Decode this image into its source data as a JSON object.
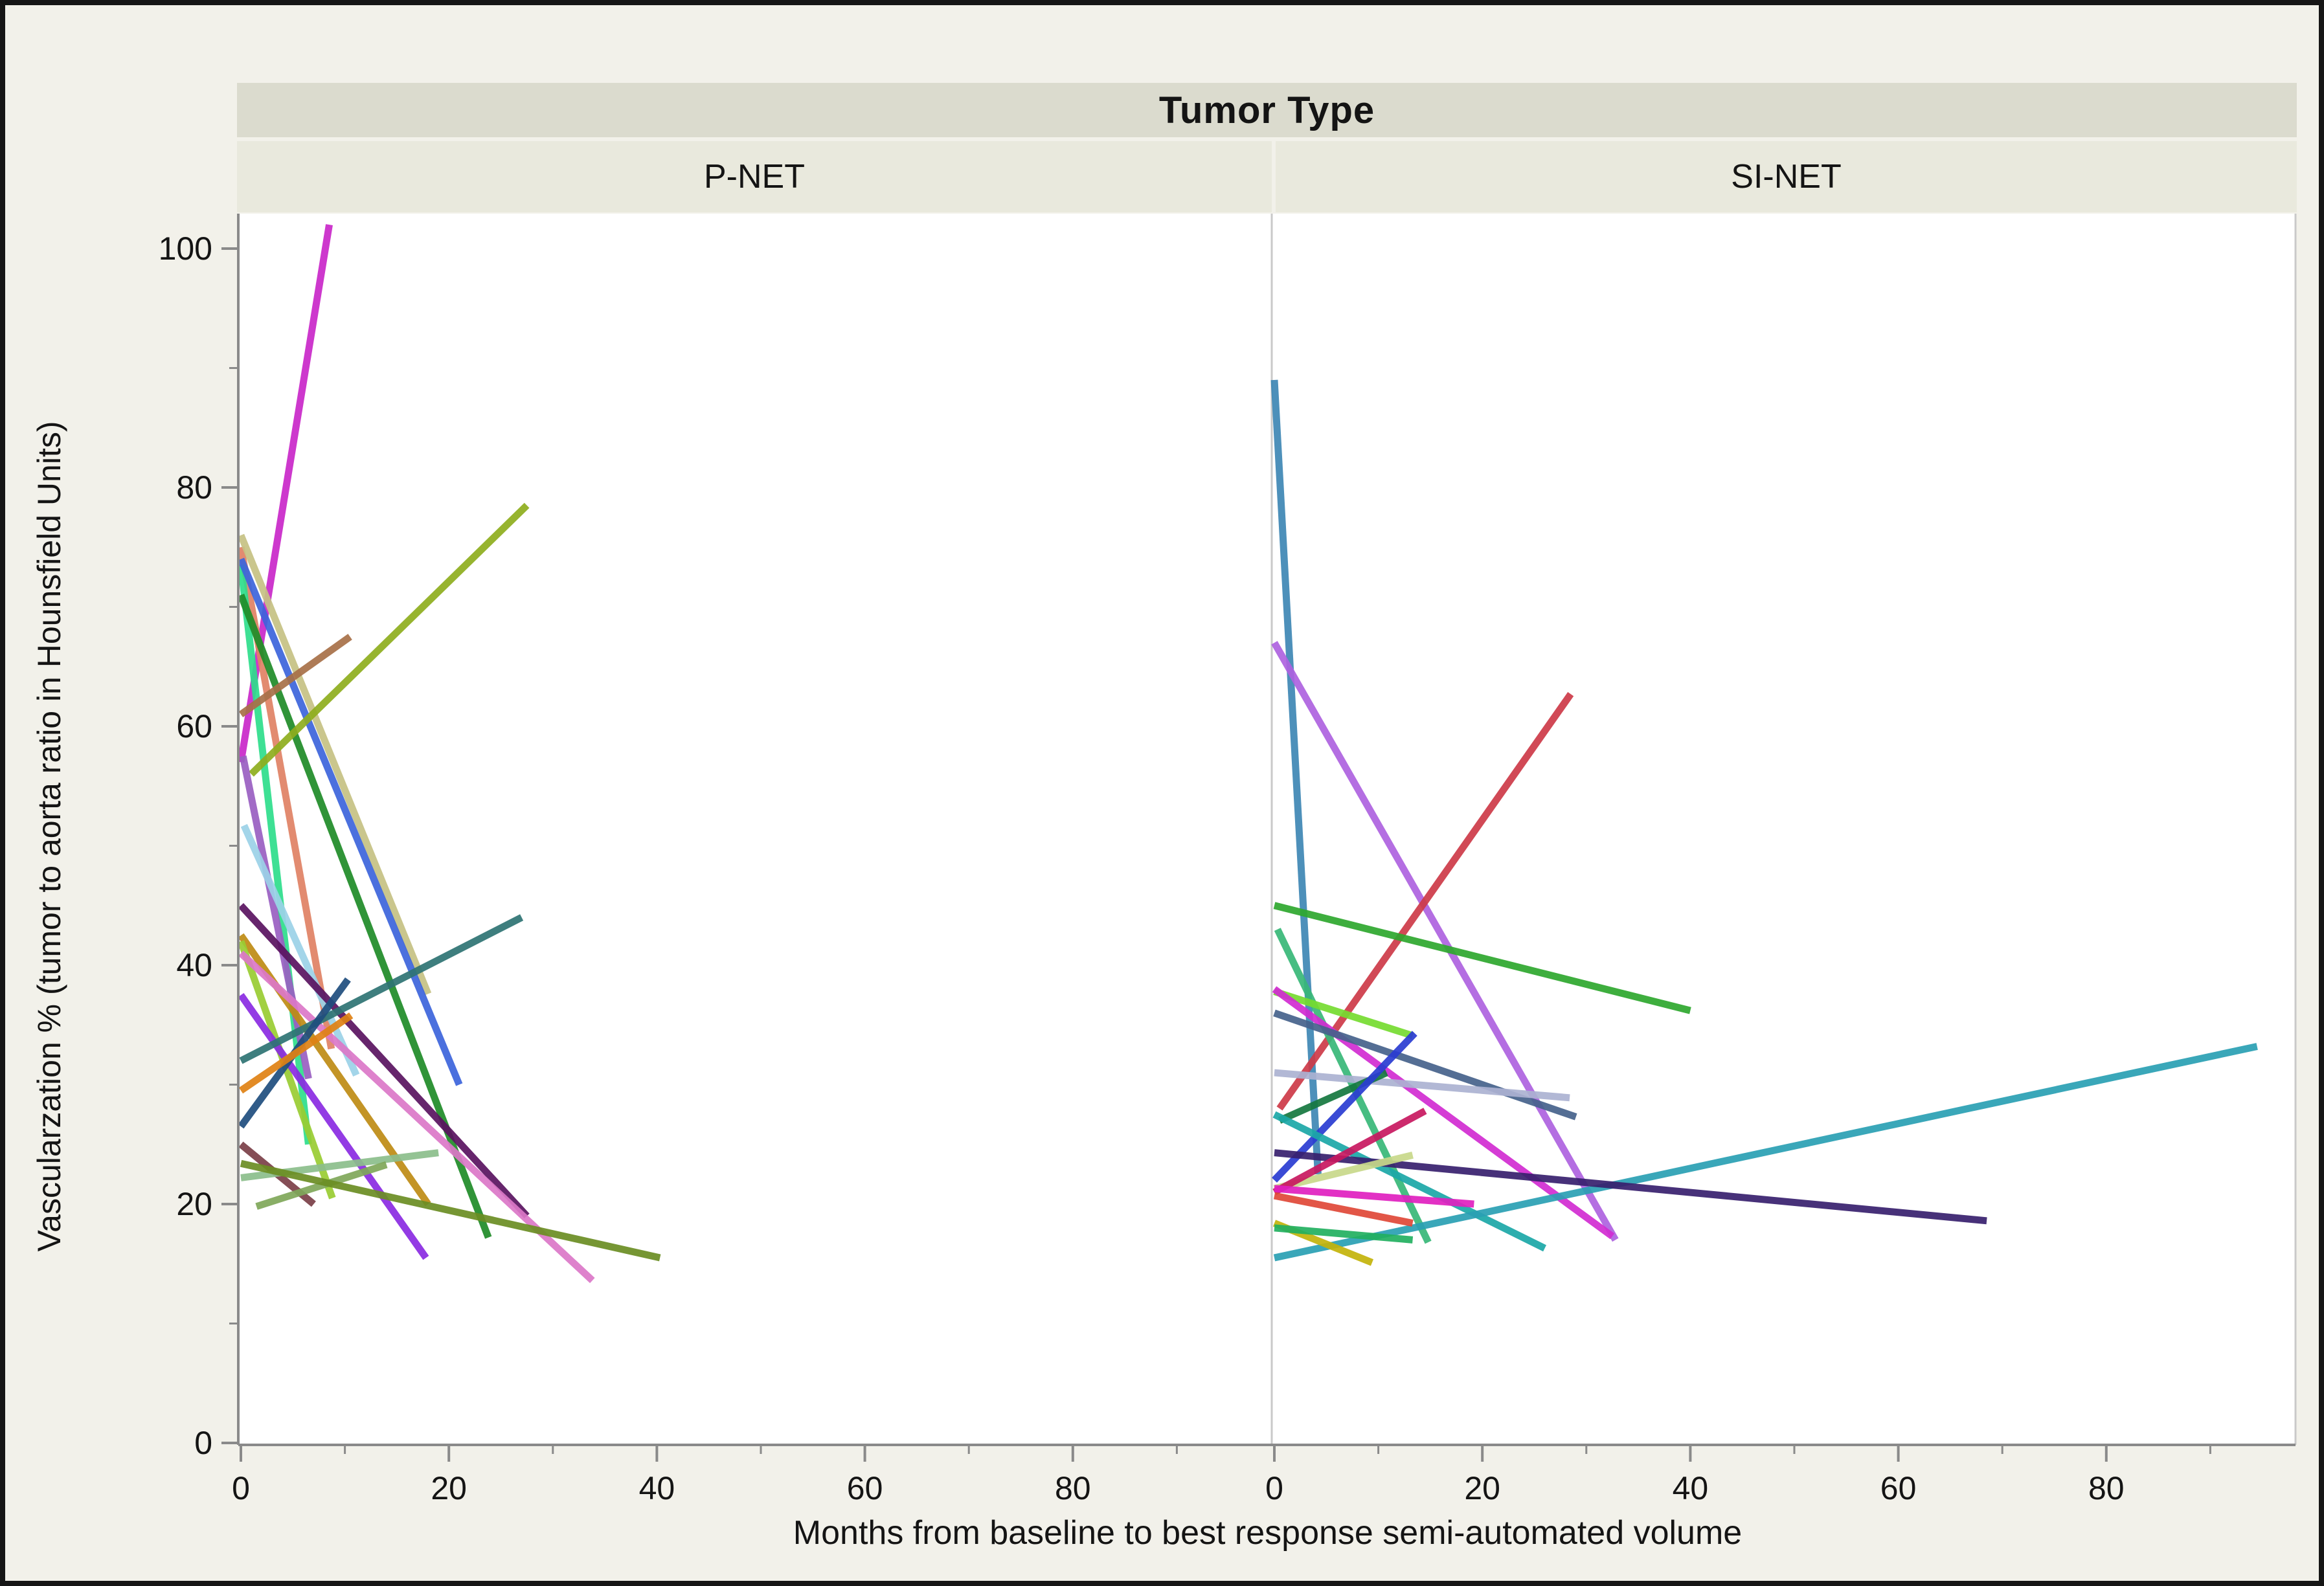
{
  "window": {
    "border_color": "#161616",
    "background_color": "#F2F1EA",
    "plot_background": "#FFFFFF",
    "title_band_color": "#DBDBCE",
    "panel_band_color": "#E9E9DD",
    "axis_color": "#8A8A8A",
    "divider_color": "#C9C9C9",
    "text_color": "#141414"
  },
  "chart_data": {
    "type": "line",
    "title": "Tumor Type",
    "xlabel": "Months from baseline to best response semi-automated volume",
    "ylabel": "Vascularzation % (tumor to aorta ratio in Hounsfield Units)",
    "xlim": [
      0,
      98
    ],
    "ylim": [
      0,
      103
    ],
    "x_major_ticks": [
      0,
      20,
      40,
      60,
      80
    ],
    "x_minor_ticks": [
      10,
      30,
      50,
      70,
      90
    ],
    "y_major_ticks": [
      0,
      20,
      40,
      60,
      80,
      100
    ],
    "y_minor_ticks": [
      10,
      30,
      50,
      70,
      90
    ],
    "grid": false,
    "legend": "none",
    "description": "Spaghetti plot: one straight segment per patient from baseline (month 0) vascularization % to vascularization % at best-response time, faceted by tumor type.",
    "panels": [
      {
        "label": "P-NET",
        "series": [
          {
            "color": "#C928C9",
            "x": [
              0,
              8.5
            ],
            "y": [
              57,
              102
            ]
          },
          {
            "color": "#E08264",
            "x": [
              0,
              8.7
            ],
            "y": [
              75,
              33
            ]
          },
          {
            "color": "#2EDE8C",
            "x": [
              0,
              6.5
            ],
            "y": [
              73.5,
              25
            ]
          },
          {
            "color": "#C6C284",
            "x": [
              0,
              18
            ],
            "y": [
              76,
              37.6
            ]
          },
          {
            "color": "#3C64DC",
            "x": [
              0,
              21
            ],
            "y": [
              74,
              30
            ]
          },
          {
            "color": "#1F8C28",
            "x": [
              0,
              23.8
            ],
            "y": [
              71,
              17.2
            ]
          },
          {
            "color": "#A87048",
            "x": [
              0,
              10.5
            ],
            "y": [
              61,
              67.5
            ]
          },
          {
            "color": "#8FAE1E",
            "x": [
              1,
              27.5
            ],
            "y": [
              56,
              78.5
            ]
          },
          {
            "color": "#9A5FC2",
            "x": [
              0.2,
              6.5
            ],
            "y": [
              57.5,
              30.5
            ]
          },
          {
            "color": "#9CD2E8",
            "x": [
              0.3,
              11.1
            ],
            "y": [
              51.7,
              30.8
            ]
          },
          {
            "color": "#5A1360",
            "x": [
              0,
              27.5
            ],
            "y": [
              45,
              19
            ]
          },
          {
            "color": "#BE8C14",
            "x": [
              0,
              18
            ],
            "y": [
              42.5,
              20
            ]
          },
          {
            "color": "#9ACD32",
            "x": [
              0,
              8.8
            ],
            "y": [
              42,
              20.5
            ]
          },
          {
            "color": "#DC78C8",
            "x": [
              0,
              33.8
            ],
            "y": [
              41,
              13.6
            ]
          },
          {
            "color": "#8A2BE2",
            "x": [
              0,
              17.8
            ],
            "y": [
              37.5,
              15.5
            ]
          },
          {
            "color": "#2E7474",
            "x": [
              0,
              27
            ],
            "y": [
              32,
              44
            ]
          },
          {
            "color": "#1F4E7E",
            "x": [
              0,
              10.3
            ],
            "y": [
              26.5,
              38.8
            ]
          },
          {
            "color": "#E08214",
            "x": [
              0,
              10.6
            ],
            "y": [
              29.5,
              35.8
            ]
          },
          {
            "color": "#7B4048",
            "x": [
              0,
              7
            ],
            "y": [
              25,
              20
            ]
          },
          {
            "color": "#8CBE8C",
            "x": [
              0,
              19
            ],
            "y": [
              22.2,
              24.3
            ]
          },
          {
            "color": "#7FA85A",
            "x": [
              1.5,
              14
            ],
            "y": [
              19.8,
              23.3
            ]
          },
          {
            "color": "#6B8E23",
            "x": [
              0,
              40.3
            ],
            "y": [
              23.4,
              15.5
            ]
          }
        ]
      },
      {
        "label": "SI-NET",
        "series": [
          {
            "color": "#3E87B5",
            "x": [
              0,
              4.2
            ],
            "y": [
              89,
              22.5
            ]
          },
          {
            "color": "#AE62E0",
            "x": [
              0,
              32.8
            ],
            "y": [
              67,
              17
            ]
          },
          {
            "color": "#CE3A48",
            "x": [
              0.5,
              28.5
            ],
            "y": [
              28,
              62.7
            ]
          },
          {
            "color": "#2EA82E",
            "x": [
              0,
              40
            ],
            "y": [
              45,
              36.2
            ]
          },
          {
            "color": "#38B878",
            "x": [
              0.3,
              14.8
            ],
            "y": [
              43,
              16.8
            ]
          },
          {
            "color": "#76DC30",
            "x": [
              0,
              13.3
            ],
            "y": [
              37.8,
              34.1
            ]
          },
          {
            "color": "#D22CD2",
            "x": [
              0,
              32.5
            ],
            "y": [
              38,
              17.3
            ]
          },
          {
            "color": "#46628C",
            "x": [
              0,
              29
            ],
            "y": [
              36,
              27.3
            ]
          },
          {
            "color": "#ACB2D2",
            "x": [
              0,
              28.4
            ],
            "y": [
              31,
              28.9
            ]
          },
          {
            "color": "#157840",
            "x": [
              0.5,
              10.8
            ],
            "y": [
              27,
              31
            ]
          },
          {
            "color": "#2A3CD2",
            "x": [
              0,
              13.5
            ],
            "y": [
              22,
              34.3
            ]
          },
          {
            "color": "#1CA8A8",
            "x": [
              0,
              26
            ],
            "y": [
              27.5,
              16.3
            ]
          },
          {
            "color": "#2AA0B4",
            "x": [
              0,
              94.5
            ],
            "y": [
              15.5,
              33.2
            ]
          },
          {
            "color": "#38206E",
            "x": [
              0,
              68.5
            ],
            "y": [
              24.3,
              18.6
            ]
          },
          {
            "color": "#C8D98A",
            "x": [
              0,
              13.3
            ],
            "y": [
              21.3,
              24.1
            ]
          },
          {
            "color": "#C81860",
            "x": [
              0,
              14.5
            ],
            "y": [
              21,
              27.8
            ]
          },
          {
            "color": "#E04838",
            "x": [
              0,
              13.3
            ],
            "y": [
              20.7,
              18.4
            ]
          },
          {
            "color": "#E020C0",
            "x": [
              0,
              19.2
            ],
            "y": [
              21.3,
              20
            ]
          },
          {
            "color": "#C4B40A",
            "x": [
              0,
              9.4
            ],
            "y": [
              18.4,
              15.1
            ]
          },
          {
            "color": "#22B060",
            "x": [
              0,
              13.3
            ],
            "y": [
              18,
              17
            ]
          }
        ]
      }
    ]
  }
}
